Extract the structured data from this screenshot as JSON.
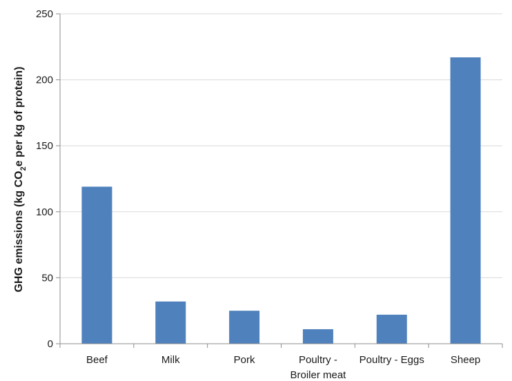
{
  "chart_data": {
    "type": "bar",
    "categories": [
      "Beef",
      "Milk",
      "Pork",
      "Poultry - Broiler meat",
      "Poultry - Eggs",
      "Sheep"
    ],
    "category_lines": [
      [
        "Beef"
      ],
      [
        "Milk"
      ],
      [
        "Pork"
      ],
      [
        "Poultry -",
        "Broiler meat"
      ],
      [
        "Poultry - Eggs"
      ],
      [
        "Sheep"
      ]
    ],
    "values": [
      119,
      32,
      25,
      11,
      22,
      217
    ],
    "ylabel": "GHG emissions (kg CO2e per kg of protein)",
    "ylabel_parts": {
      "before": "GHG emissions (kg CO",
      "sub": "2",
      "after": "e per kg of protein)"
    },
    "ylim": [
      0,
      250
    ],
    "yticks": [
      0,
      50,
      100,
      150,
      200,
      250
    ],
    "grid": true,
    "bar_color": "#4f81bd",
    "grid_color": "#d9d9d9",
    "axis_color": "#8c8c8c"
  }
}
